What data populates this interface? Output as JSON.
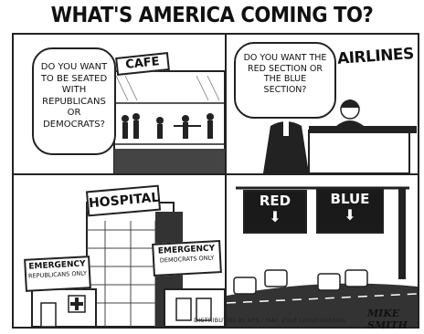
{
  "title": "WHAT'S AMERICA COMING TO?",
  "panel1": {
    "bubble": "DO YOU WANT TO BE SEATED WITH REPUBLICANS OR DEMOCRATS?",
    "sign": "CAFE"
  },
  "panel2": {
    "bubble": "DO YOU WANT THE RED SECTION OR THE BLUE SECTION?",
    "sign": "AIRLINES"
  },
  "panel3": {
    "building_sign": "HOSPITAL",
    "left_sign_title": "EMERGENCY",
    "left_sign_sub": "REPUBLICANS ONLY",
    "right_sign_title": "EMERGENCY",
    "right_sign_sub": "DEMOCRATS ONLY"
  },
  "panel4": {
    "left_sign": "RED",
    "right_sign": "BLUE"
  },
  "credit": "DISTRIBUTED BY KPS / MAS 2018 LASVEGASSUN",
  "signature": "MIKE SMITH",
  "colors": {
    "ink": "#111111",
    "paper": "#ffffff",
    "dark_sign": "#1a1a1a"
  }
}
